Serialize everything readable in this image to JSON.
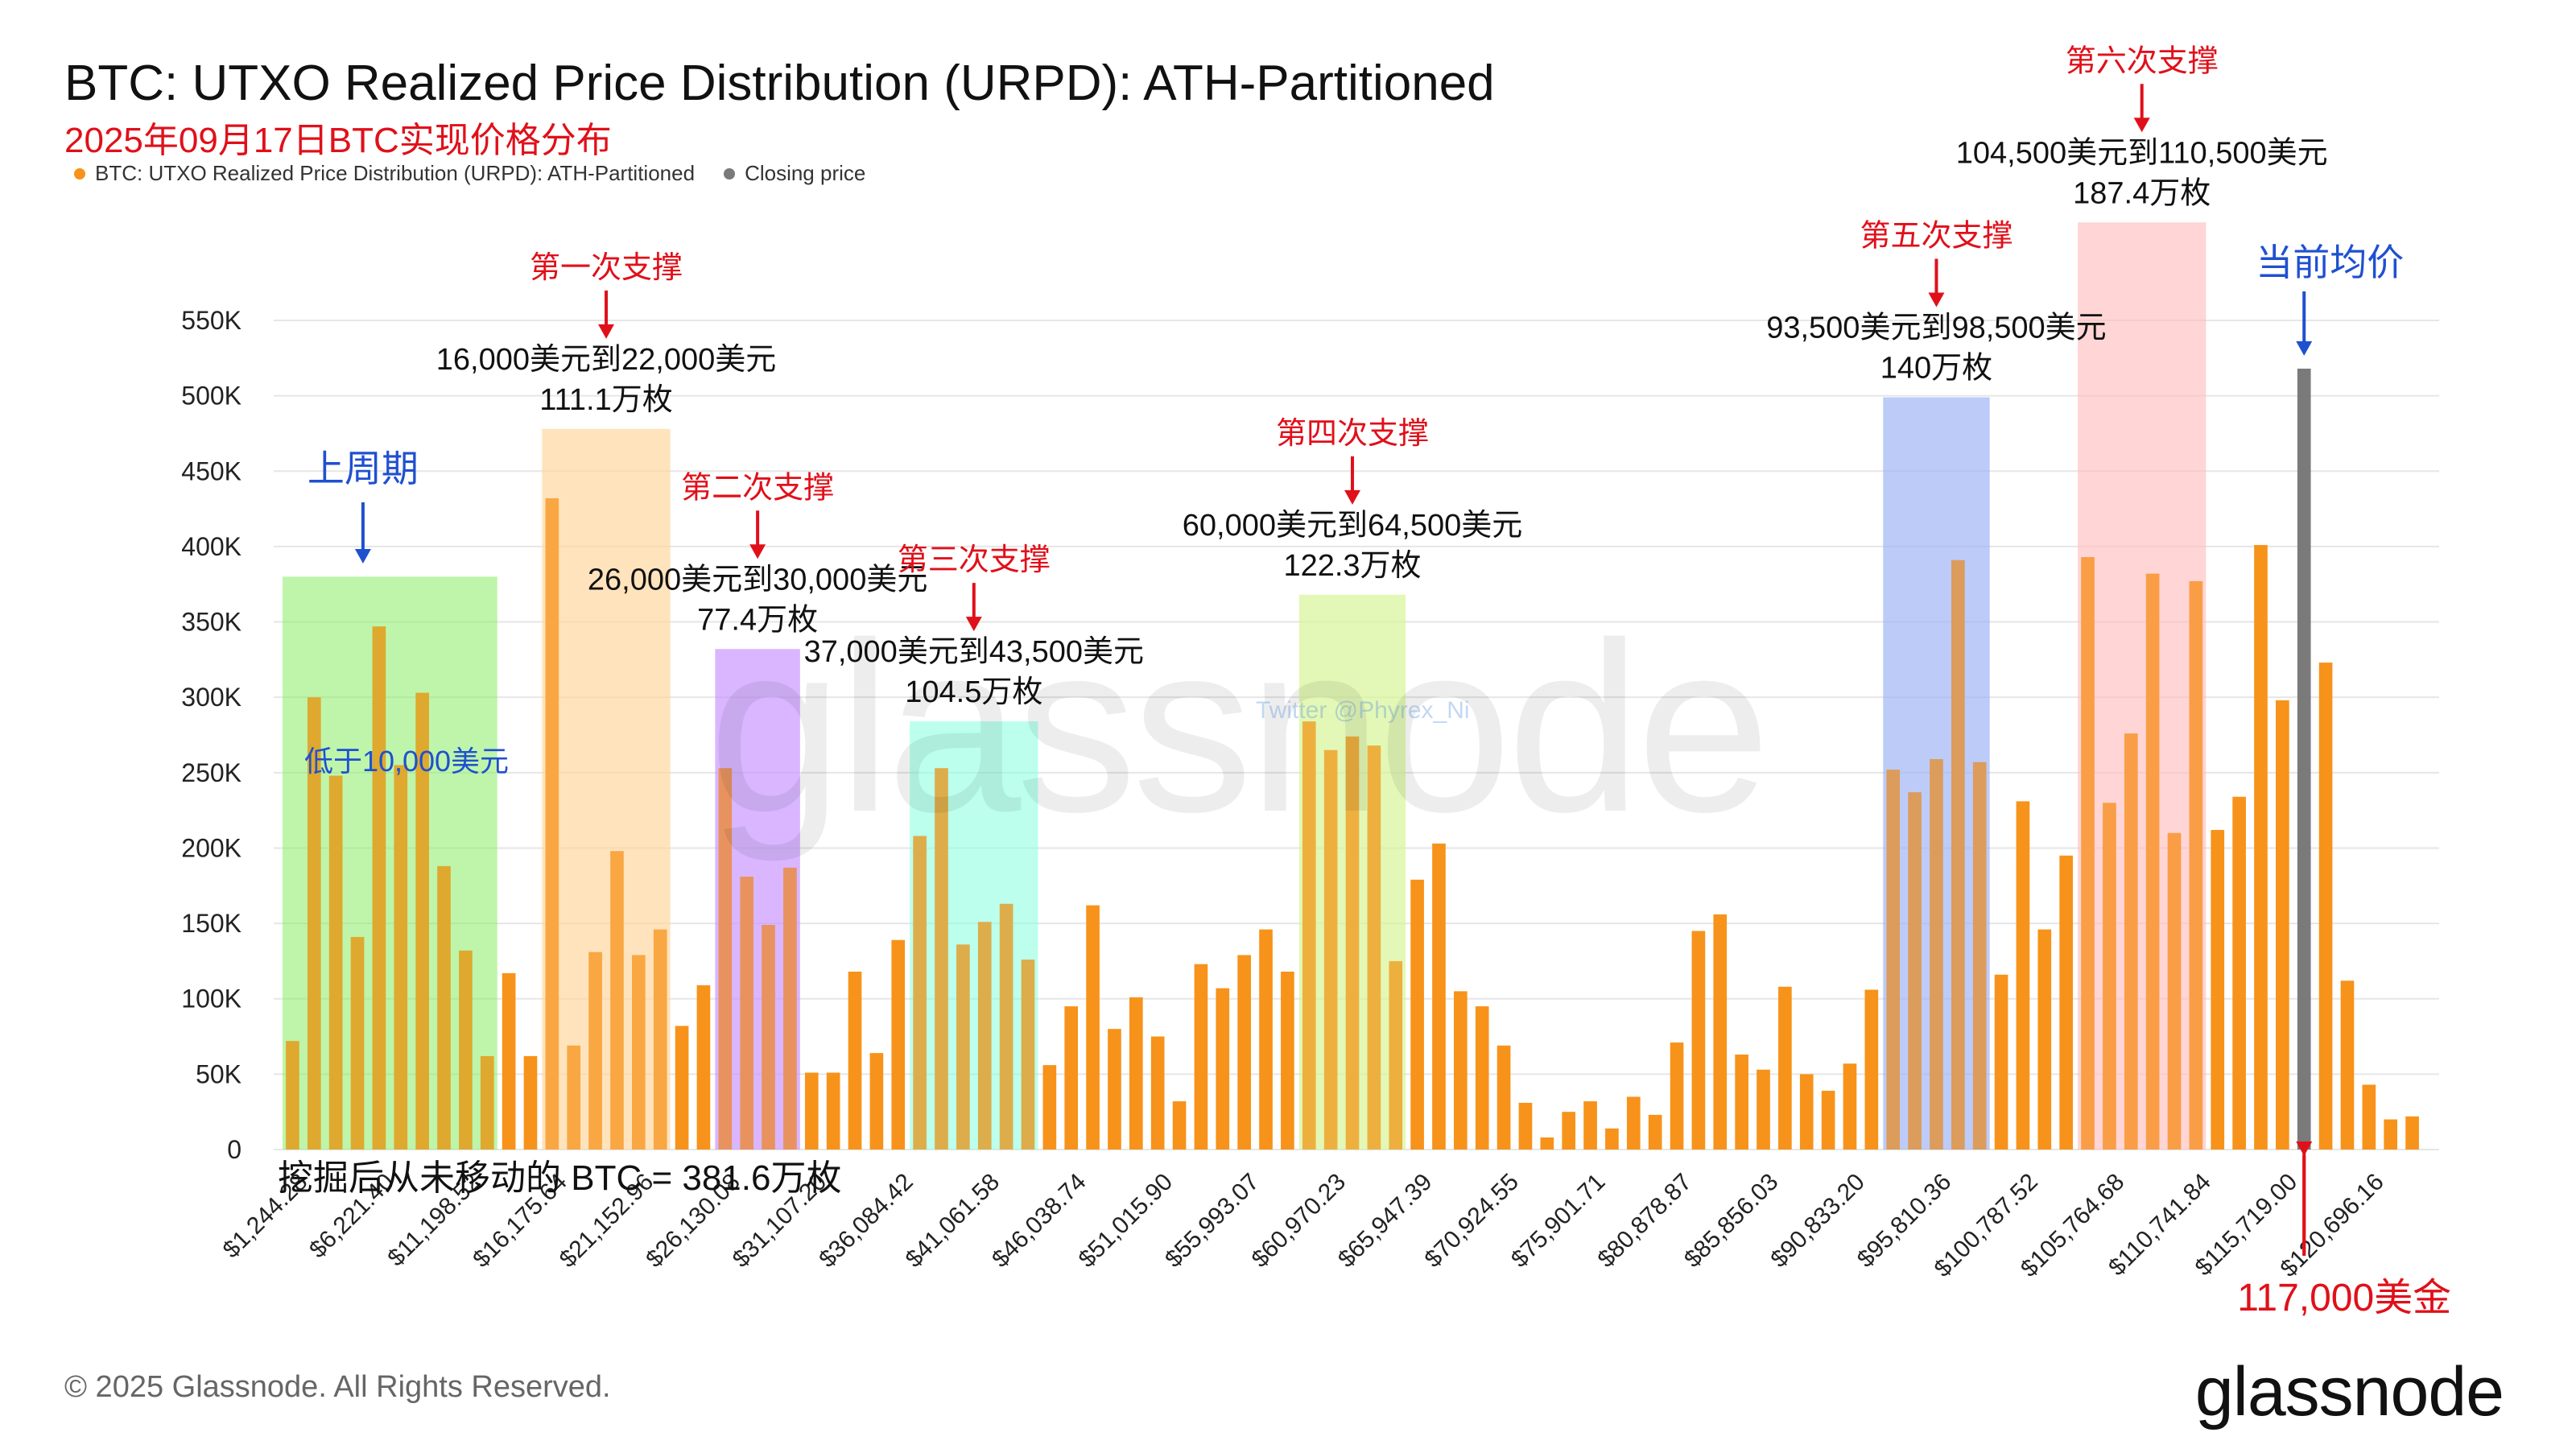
{
  "header": {
    "title": "BTC: UTXO Realized Price Distribution (URPD): ATH-Partitioned",
    "subtitle": "2025年09月17日BTC实现价格分布"
  },
  "legend": [
    {
      "label": "BTC: UTXO Realized Price Distribution (URPD): ATH-Partitioned",
      "color": "#f7931a"
    },
    {
      "label": "Closing price",
      "color": "#7a7a7a"
    }
  ],
  "watermark": "glassnode",
  "watermark_small": "Twitter @Phyrex_Ni",
  "footer": {
    "copyright": "© 2025 Glassnode. All Rights Reserved.",
    "brand": "glassnode"
  },
  "chart_data": {
    "type": "bar",
    "ylim": [
      0,
      550000
    ],
    "yticks": [
      0,
      50000,
      100000,
      150000,
      200000,
      250000,
      300000,
      350000,
      400000,
      450000,
      500000,
      550000
    ],
    "ytick_labels": [
      "0",
      "50K",
      "100K",
      "150K",
      "200K",
      "250K",
      "300K",
      "350K",
      "400K",
      "450K",
      "500K",
      "550K"
    ],
    "xtick_labels": [
      "$1,244.28",
      "$6,221.40",
      "$11,198.52",
      "$16,175.64",
      "$21,152.96",
      "$26,130.08",
      "$31,107.20",
      "$36,084.42",
      "$41,061.58",
      "$46,038.74",
      "$51,015.90",
      "$55,993.07",
      "$60,970.23",
      "$65,947.39",
      "$70,924.55",
      "$75,901.71",
      "$80,878.87",
      "$85,856.03",
      "$90,833.20",
      "$95,810.36",
      "$100,787.52",
      "$105,764.68",
      "$110,741.84",
      "$115,719.00",
      "$120,696.16"
    ],
    "xtick_every": 4,
    "closing_index": 93,
    "colors": {
      "bar": "#f7931a",
      "closing": "#7a7a7a"
    },
    "values": [
      72000,
      300000,
      248000,
      141000,
      347000,
      255000,
      303000,
      188000,
      132000,
      62000,
      117000,
      62000,
      432000,
      69000,
      131000,
      198000,
      129000,
      146000,
      82000,
      109000,
      253000,
      181000,
      149000,
      187000,
      51000,
      51000,
      118000,
      64000,
      139000,
      208000,
      253000,
      136000,
      151000,
      163000,
      126000,
      56000,
      95000,
      162000,
      80000,
      101000,
      75000,
      32000,
      123000,
      107000,
      129000,
      146000,
      118000,
      284000,
      265000,
      274000,
      268000,
      125000,
      179000,
      203000,
      105000,
      95000,
      69000,
      31000,
      8000,
      25000,
      32000,
      14000,
      35000,
      23000,
      71000,
      145000,
      156000,
      63000,
      53000,
      108000,
      50000,
      39000,
      57000,
      106000,
      252000,
      237000,
      259000,
      391000,
      257000,
      116000,
      231000,
      146000,
      195000,
      393000,
      230000,
      276000,
      382000,
      210000,
      377000,
      212000,
      234000,
      401000,
      298000,
      518000,
      323000,
      112000,
      43000,
      20000,
      22000
    ],
    "zones": [
      {
        "start": 0,
        "end": 9,
        "top": 380000,
        "color": "rgba(144,238,110,0.45)",
        "annotation_lines": [
          "低于10,000美元"
        ],
        "label_color": "#1f50d0",
        "header": "上周期",
        "header_color": "#1f50d0",
        "arrow_color": "#1f50d0"
      },
      {
        "start": 12,
        "end": 17,
        "top": 478000,
        "color": "rgba(255,214,160,0.55)",
        "header": "第一次支撑",
        "header_color": "#e0101a",
        "arrow_color": "#e0101a",
        "annotation_lines": [
          "16,000美元到22,000美元",
          "111.1万枚"
        ],
        "label_color": "#111111"
      },
      {
        "start": 20,
        "end": 23,
        "top": 332000,
        "color": "rgba(200,150,255,0.55)",
        "header": "第二次支撑",
        "header_color": "#e0101a",
        "arrow_color": "#e0101a",
        "annotation_lines": [
          "26,000美元到30,000美元",
          "77.4万枚"
        ],
        "label_color": "#111111"
      },
      {
        "start": 29,
        "end": 34,
        "top": 284000,
        "color": "rgba(140,255,225,0.45)",
        "header": "第三次支撑",
        "header_color": "#e0101a",
        "arrow_color": "#e0101a",
        "annotation_lines": [
          "37,000美元到43,500美元",
          "104.5万枚"
        ],
        "label_color": "#111111"
      },
      {
        "start": 47,
        "end": 51,
        "top": 368000,
        "color": "rgba(215,245,150,0.55)",
        "header": "第四次支撑",
        "header_color": "#e0101a",
        "arrow_color": "#e0101a",
        "annotation_lines": [
          "60,000美元到64,500美元",
          "122.3万枚"
        ],
        "label_color": "#111111"
      },
      {
        "start": 74,
        "end": 78,
        "top": 499000,
        "color": "rgba(160,180,245,0.55)",
        "header": "第五次支撑",
        "header_color": "#e0101a",
        "arrow_color": "#e0101a",
        "annotation_lines": [
          "93,500美元到98,500美元",
          "140万枚"
        ],
        "label_color": "#111111"
      },
      {
        "start": 83,
        "end": 88,
        "top": 615000,
        "color": "rgba(255,190,190,0.5)",
        "header": "第六次支撑",
        "header_color": "#e0101a",
        "arrow_color": "#e0101a",
        "annotation_lines": [
          "104,500美元到110,500美元",
          "187.4万枚"
        ],
        "label_color": "#111111"
      }
    ],
    "current_price": {
      "label": "当前均价",
      "color": "#1f50d0"
    },
    "closing_label": {
      "label": "117,000美金",
      "color": "#e0101a"
    },
    "bottom_note": "挖掘后从未移动的 BTC = 381.6万枚"
  }
}
